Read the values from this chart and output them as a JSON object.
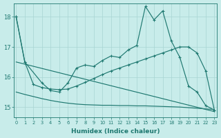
{
  "xlabel": "Humidex (Indice chaleur)",
  "bg_color": "#c8ecea",
  "grid_color": "#a8d4d2",
  "line_color": "#1e7870",
  "xlim": [
    -0.3,
    23.3
  ],
  "ylim": [
    14.65,
    18.45
  ],
  "yticks": [
    15,
    16,
    17,
    18
  ],
  "xticks": [
    0,
    1,
    2,
    3,
    4,
    5,
    6,
    7,
    8,
    9,
    10,
    11,
    12,
    13,
    14,
    15,
    16,
    17,
    18,
    19,
    20,
    21,
    22,
    23
  ],
  "line1_x": [
    0,
    1,
    3,
    4,
    5,
    6,
    7,
    8,
    9,
    10,
    11,
    12,
    13,
    14,
    15,
    16,
    17,
    18,
    19,
    20,
    21,
    22,
    23
  ],
  "line1_y": [
    18.0,
    16.5,
    15.8,
    15.55,
    15.5,
    15.8,
    16.3,
    16.4,
    16.35,
    16.55,
    16.7,
    16.65,
    16.9,
    17.05,
    18.35,
    17.9,
    18.2,
    17.2,
    16.65,
    15.7,
    15.5,
    15.05,
    14.9
  ],
  "line2_x": [
    0,
    1,
    2,
    3,
    4,
    5,
    6,
    7,
    8,
    9,
    10,
    11,
    12,
    13,
    14,
    15,
    16,
    17,
    18,
    19,
    20,
    21,
    22,
    23
  ],
  "line2_y": [
    18.0,
    16.5,
    15.75,
    15.65,
    15.6,
    15.58,
    15.6,
    15.7,
    15.82,
    15.95,
    16.08,
    16.2,
    16.3,
    16.4,
    16.5,
    16.6,
    16.7,
    16.8,
    16.9,
    17.0,
    17.0,
    16.8,
    16.2,
    14.9
  ],
  "line3_x": [
    0,
    1,
    2,
    3,
    4,
    5,
    6,
    7,
    8,
    9,
    10,
    11,
    12,
    13,
    14,
    15,
    16,
    17,
    18,
    19,
    20,
    21,
    22,
    23
  ],
  "line3_y": [
    15.5,
    15.42,
    15.35,
    15.28,
    15.22,
    15.17,
    15.13,
    15.1,
    15.08,
    15.07,
    15.06,
    15.06,
    15.05,
    15.05,
    15.04,
    15.04,
    15.03,
    15.02,
    15.01,
    15.0,
    14.98,
    14.96,
    14.94,
    14.92
  ],
  "line4_x": [
    0,
    23
  ],
  "line4_y": [
    16.5,
    14.85
  ]
}
